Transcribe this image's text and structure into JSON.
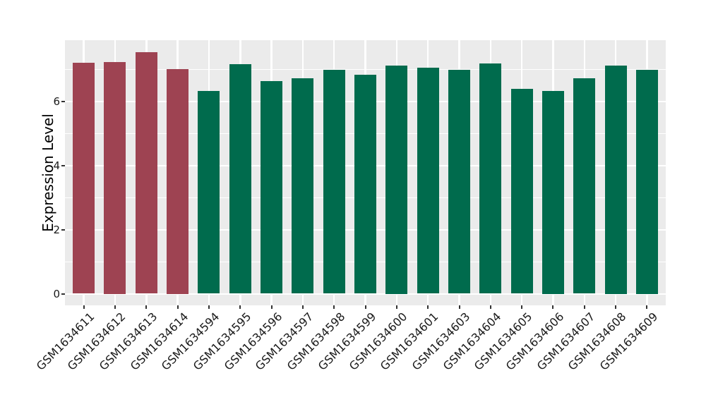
{
  "chart_data": {
    "type": "bar",
    "title": "",
    "xlabel": "",
    "ylabel": "Expression Level",
    "ylim": [
      0,
      7.9
    ],
    "yticks": [
      0,
      2,
      4,
      6
    ],
    "yticks_minor": [
      1,
      3,
      5,
      7
    ],
    "grid": "on",
    "legend": "none",
    "panel_background": "#EBEBEB",
    "grid_color": "#FFFFFF",
    "tick_mark_color": "#333333",
    "axis_text_color": "#1A1A1A",
    "categories": [
      "GSM1634611",
      "GSM1634612",
      "GSM1634613",
      "GSM1634614",
      "GSM1634594",
      "GSM1634595",
      "GSM1634596",
      "GSM1634597",
      "GSM1634598",
      "GSM1634599",
      "GSM1634600",
      "GSM1634601",
      "GSM1634603",
      "GSM1634604",
      "GSM1634605",
      "GSM1634606",
      "GSM1634607",
      "GSM1634608",
      "GSM1634609"
    ],
    "values": [
      7.2,
      7.23,
      7.53,
      7.0,
      6.32,
      7.15,
      6.63,
      6.72,
      6.97,
      6.82,
      7.12,
      7.05,
      6.98,
      7.18,
      6.38,
      6.33,
      6.72,
      7.12,
      6.99
    ],
    "groups": [
      "A",
      "A",
      "A",
      "A",
      "B",
      "B",
      "B",
      "B",
      "B",
      "B",
      "B",
      "B",
      "B",
      "B",
      "B",
      "B",
      "B",
      "B",
      "B"
    ],
    "group_colors": {
      "A": "#9E4352",
      "B": "#006B4D"
    }
  }
}
